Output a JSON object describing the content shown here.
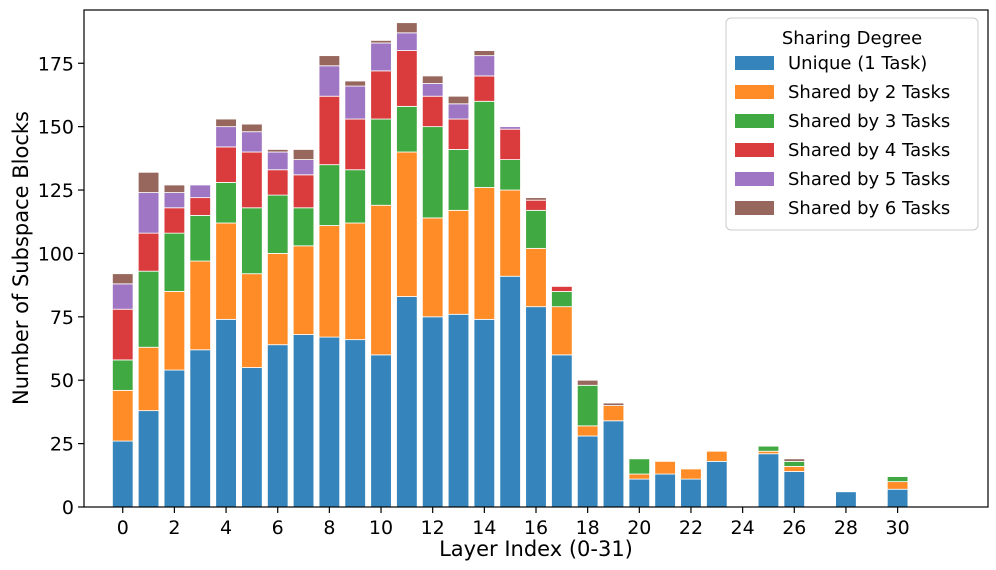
{
  "chart_data": {
    "type": "bar",
    "stacked": true,
    "title": "",
    "xlabel": "Layer Index (0-31)",
    "ylabel": "Number of Subspace Blocks",
    "ylim": [
      0,
      196
    ],
    "xlim": [
      -1.5,
      33.5
    ],
    "x": [
      0,
      1,
      2,
      3,
      4,
      5,
      6,
      7,
      8,
      9,
      10,
      11,
      12,
      13,
      14,
      15,
      16,
      17,
      18,
      19,
      20,
      21,
      22,
      23,
      24,
      25,
      26,
      27,
      28,
      29,
      30,
      31
    ],
    "x_tick_values": [
      0,
      2,
      4,
      6,
      8,
      10,
      12,
      14,
      16,
      18,
      20,
      22,
      24,
      26,
      28,
      30
    ],
    "y_tick_values": [
      0,
      25,
      50,
      75,
      100,
      125,
      150,
      175
    ],
    "grid": false,
    "legend": {
      "title": "Sharing Degree",
      "placement": "top-right"
    },
    "series": [
      {
        "name": "Unique (1 Task)",
        "color": "#1f77b4",
        "values": [
          26,
          38,
          54,
          62,
          74,
          55,
          64,
          68,
          67,
          66,
          60,
          83,
          75,
          76,
          74,
          91,
          79,
          60,
          28,
          34,
          11,
          13,
          11,
          18,
          0,
          21,
          14,
          0,
          6,
          0,
          7,
          0
        ]
      },
      {
        "name": "Shared by 2 Tasks",
        "color": "#ff7f0e",
        "values": [
          20,
          25,
          31,
          35,
          38,
          37,
          36,
          35,
          44,
          46,
          59,
          57,
          39,
          41,
          52,
          34,
          23,
          19,
          4,
          6,
          2,
          5,
          4,
          4,
          0,
          1,
          2,
          0,
          0,
          0,
          3,
          0
        ]
      },
      {
        "name": "Shared by 3 Tasks",
        "color": "#2ca02c",
        "values": [
          12,
          30,
          23,
          18,
          16,
          26,
          23,
          15,
          24,
          21,
          34,
          18,
          36,
          24,
          34,
          12,
          15,
          6,
          16,
          0,
          6,
          0,
          0,
          0,
          0,
          2,
          2,
          0,
          0,
          0,
          2,
          0
        ]
      },
      {
        "name": "Shared by 4 Tasks",
        "color": "#d62728",
        "values": [
          20,
          15,
          10,
          7,
          14,
          22,
          10,
          13,
          27,
          20,
          19,
          22,
          12,
          12,
          10,
          12,
          4,
          2,
          0,
          0,
          0,
          0,
          0,
          0,
          0,
          0,
          0,
          0,
          0,
          0,
          0,
          0
        ]
      },
      {
        "name": "Shared by 5 Tasks",
        "color": "#9467bd",
        "values": [
          10,
          16,
          6,
          5,
          8,
          8,
          7,
          6,
          12,
          13,
          11,
          7,
          5,
          6,
          8,
          1,
          0,
          0,
          0,
          0,
          0,
          0,
          0,
          0,
          0,
          0,
          0,
          0,
          0,
          0,
          0,
          0
        ]
      },
      {
        "name": "Shared by 6 Tasks",
        "color": "#8c564b",
        "values": [
          4,
          8,
          3,
          0,
          3,
          3,
          1,
          4,
          4,
          2,
          1,
          4,
          3,
          3,
          2,
          0,
          1,
          0,
          2,
          1,
          0,
          0,
          0,
          0,
          0,
          0,
          1,
          0,
          0,
          0,
          0,
          0
        ]
      }
    ]
  }
}
